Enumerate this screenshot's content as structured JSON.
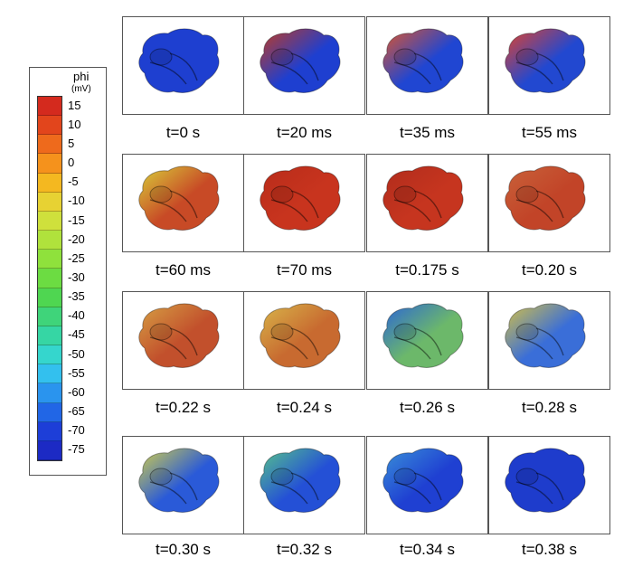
{
  "legend": {
    "title": "phi",
    "unit": "(mV)",
    "labels": [
      "15",
      "10",
      "5",
      "0",
      "-5",
      "-10",
      "-15",
      "-20",
      "-25",
      "-30",
      "-35",
      "-40",
      "-45",
      "-50",
      "-55",
      "-60",
      "-65",
      "-70",
      "-75"
    ],
    "colors": [
      "#d42a1e",
      "#e2451c",
      "#ee6a1c",
      "#f5921c",
      "#f4b820",
      "#e7d233",
      "#cfe03c",
      "#b0e23c",
      "#8fe13c",
      "#6cdc42",
      "#4fd651",
      "#3fd47a",
      "#36d6a4",
      "#35d6cd",
      "#33c0ee",
      "#2a94ee",
      "#2166e6",
      "#1d3ed8",
      "#1c2ac4"
    ]
  },
  "panels": [
    {
      "caption": "t=0 s",
      "color": "#1e3fd0",
      "accent": "#1e3fd0"
    },
    {
      "caption": "t=20 ms",
      "color": "#1e3fd0",
      "accent": "#c23a20"
    },
    {
      "caption": "t=35 ms",
      "color": "#2046d2",
      "accent": "#e0552a"
    },
    {
      "caption": "t=55 ms",
      "color": "#2248d0",
      "accent": "#e4422a"
    },
    {
      "caption": "t=60 ms",
      "color": "#c84a26",
      "accent": "#d8cf3a"
    },
    {
      "caption": "t=70 ms",
      "color": "#c8341e",
      "accent": "#b82c1a"
    },
    {
      "caption": "t=0.175 s",
      "color": "#c6351f",
      "accent": "#b02c1c"
    },
    {
      "caption": "t=0.20 s",
      "color": "#c24428",
      "accent": "#c8623a"
    },
    {
      "caption": "t=0.22 s",
      "color": "#c2502c",
      "accent": "#d6a044"
    },
    {
      "caption": "t=0.24 s",
      "color": "#c86a30",
      "accent": "#d8b64a"
    },
    {
      "caption": "t=0.26 s",
      "color": "#6cb86a",
      "accent": "#2a64d8"
    },
    {
      "caption": "t=0.28 s",
      "color": "#3a6ed8",
      "accent": "#d6c244"
    },
    {
      "caption": "t=0.30 s",
      "color": "#2a5ad8",
      "accent": "#d2d04a"
    },
    {
      "caption": "t=0.32 s",
      "color": "#2450d6",
      "accent": "#56c48a"
    },
    {
      "caption": "t=0.34 s",
      "color": "#1f40d2",
      "accent": "#3a90d8"
    },
    {
      "caption": "t=0.38 s",
      "color": "#1e3ccc",
      "accent": "#1e3ccc"
    }
  ]
}
